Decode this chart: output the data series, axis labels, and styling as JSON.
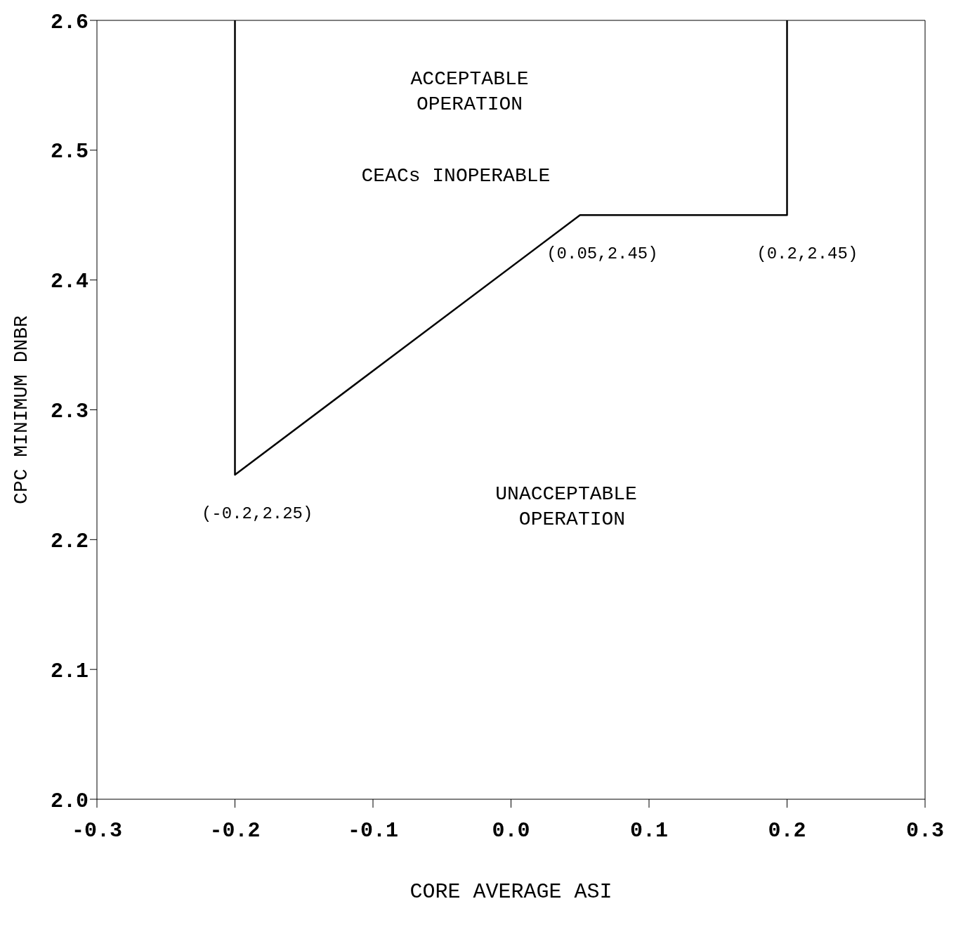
{
  "chart_data": {
    "type": "line",
    "xlabel": "CORE AVERAGE ASI",
    "ylabel": "CPC MINIMUM DNBR",
    "series": [
      {
        "color": "#000000",
        "x": [
          -0.2,
          -0.2,
          0.05,
          0.2,
          0.2
        ],
        "values": [
          2.6,
          2.25,
          2.45,
          2.45,
          2.6
        ]
      }
    ],
    "xlim": [
      -0.3,
      0.3
    ],
    "xticks": [
      -0.3,
      -0.2,
      -0.1,
      {
        "value": 0,
        "label": "0.0"
      },
      0.1,
      0.2,
      0.3
    ],
    "ylim": [
      2.0,
      2.6
    ],
    "yticks": [
      {
        "value": 2.0,
        "label": "2.0"
      },
      2.1,
      2.2,
      2.3,
      2.4,
      2.5,
      2.6
    ],
    "marker": "none",
    "line_style": "solid",
    "annotations": [
      "ACCEPTABLE\nOPERATION",
      "CEACs INOPERABLE",
      "UNACCEPTABLE\n OPERATION",
      {
        "text": "(-0.2,2.25)",
        "x": -0.2,
        "y": 2.25
      },
      {
        "text": "(0.05,2.45)",
        "x": 0.05,
        "y": 2.45
      },
      {
        "text": "(0.2,2.45)",
        "x": 0.2,
        "y": 2.45
      }
    ]
  }
}
